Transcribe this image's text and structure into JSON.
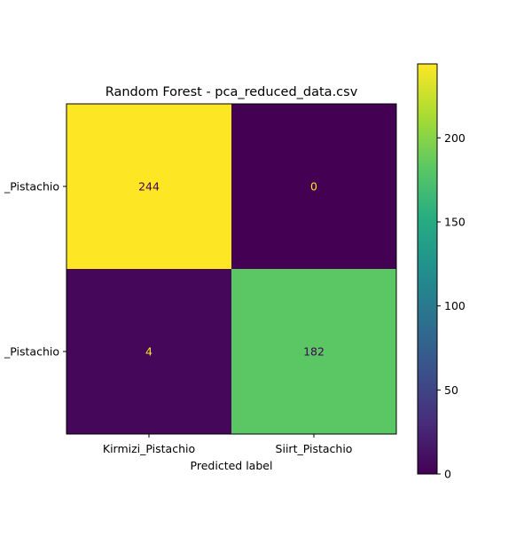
{
  "chart_data": {
    "type": "heatmap",
    "title": "Random Forest - pca_reduced_data.csv",
    "xlabel": "Predicted label",
    "ylabel": "",
    "x_categories": [
      "Kirmizi_Pistachio",
      "Siirt_Pistachio"
    ],
    "y_categories": [
      "_Pistachio",
      "_Pistachio"
    ],
    "matrix": [
      [
        244,
        0
      ],
      [
        4,
        182
      ]
    ],
    "colormap": "viridis",
    "colorbar": {
      "min": 0,
      "max": 244,
      "ticks": [
        0,
        50,
        100,
        150,
        200
      ]
    }
  }
}
